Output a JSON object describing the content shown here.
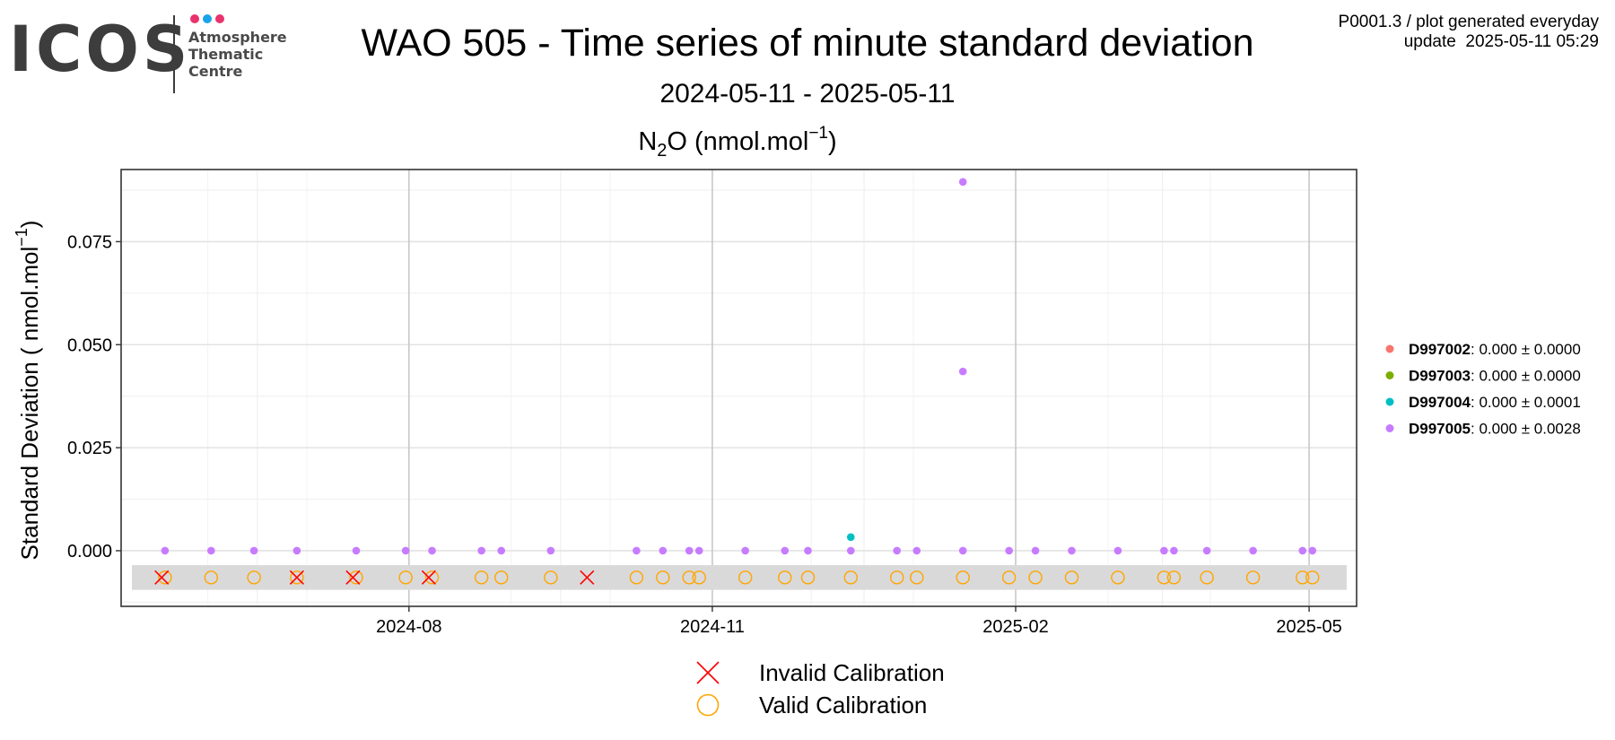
{
  "header": {
    "logo": {
      "wordmark": "ICOS",
      "lines": [
        "Atmosphere",
        "Thematic",
        "Centre"
      ],
      "dot_colors": [
        "#e8336d",
        "#1aa3e8",
        "#e8336d"
      ]
    },
    "title": "WAO 505 - Time series of minute standard deviation",
    "subtitle": "2024-05-11 - 2025-05-11",
    "meta_line1": "P0001.3 / plot generated everyday",
    "meta_line2": "update  2025-05-11 05:29"
  },
  "chart_data": {
    "type": "scatter",
    "title": "N2O (nmol.mol-1)",
    "ylabel": "Standard Deviation ( nmol.mol-1)",
    "x_range": [
      "2024-05-11",
      "2025-05-11"
    ],
    "ylim": [
      -0.0135,
      0.0925
    ],
    "yticks": [
      0.0,
      0.025,
      0.05,
      0.075
    ],
    "ytick_labels": [
      "0.000",
      "0.025",
      "0.050",
      "0.075"
    ],
    "xticks": [
      "2024-08-01",
      "2024-11-01",
      "2025-02-01",
      "2025-05-01"
    ],
    "xtick_labels": [
      "2024-08",
      "2024-11",
      "2025-02",
      "2025-05"
    ],
    "grid": true,
    "legend_position": "right",
    "series": [
      {
        "name": "D997002",
        "label": ": 0.000 ± 0.0000",
        "color": "#f8766d",
        "points": []
      },
      {
        "name": "D997003",
        "label": ": 0.000 ± 0.0000",
        "color": "#7cae00",
        "points": []
      },
      {
        "name": "D997004",
        "label": ": 0.000 ± 0.0001",
        "color": "#00bfc4",
        "points": [
          {
            "x": "2024-12-13",
            "y": 0.0033
          }
        ]
      },
      {
        "name": "D997005",
        "label": ": 0.000 ± 0.0028",
        "color": "#c77cff",
        "points": [
          {
            "x": "2024-05-19",
            "y": 0.0
          },
          {
            "x": "2024-06-02",
            "y": 0.0
          },
          {
            "x": "2024-06-15",
            "y": 0.0
          },
          {
            "x": "2024-06-28",
            "y": 0.0
          },
          {
            "x": "2024-07-16",
            "y": 0.0
          },
          {
            "x": "2024-07-31",
            "y": 0.0
          },
          {
            "x": "2024-08-08",
            "y": 0.0
          },
          {
            "x": "2024-08-23",
            "y": 0.0
          },
          {
            "x": "2024-08-29",
            "y": 0.0
          },
          {
            "x": "2024-09-13",
            "y": 0.0
          },
          {
            "x": "2024-10-09",
            "y": 0.0
          },
          {
            "x": "2024-10-17",
            "y": 0.0
          },
          {
            "x": "2024-10-25",
            "y": 0.0
          },
          {
            "x": "2024-10-28",
            "y": 0.0
          },
          {
            "x": "2024-11-11",
            "y": 0.0
          },
          {
            "x": "2024-11-23",
            "y": 0.0
          },
          {
            "x": "2024-11-30",
            "y": 0.0
          },
          {
            "x": "2024-12-13",
            "y": 0.0
          },
          {
            "x": "2024-12-27",
            "y": 0.0
          },
          {
            "x": "2025-01-02",
            "y": 0.0
          },
          {
            "x": "2025-01-16",
            "y": 0.0
          },
          {
            "x": "2025-01-16",
            "y": 0.0435
          },
          {
            "x": "2025-01-16",
            "y": 0.0895
          },
          {
            "x": "2025-01-30",
            "y": 0.0
          },
          {
            "x": "2025-02-07",
            "y": 0.0
          },
          {
            "x": "2025-02-18",
            "y": 0.0
          },
          {
            "x": "2025-03-04",
            "y": 0.0
          },
          {
            "x": "2025-03-18",
            "y": 0.0
          },
          {
            "x": "2025-03-21",
            "y": 0.0
          },
          {
            "x": "2025-03-31",
            "y": 0.0
          },
          {
            "x": "2025-04-14",
            "y": 0.0
          },
          {
            "x": "2025-04-29",
            "y": 0.0
          },
          {
            "x": "2025-05-02",
            "y": 0.0
          }
        ]
      }
    ],
    "calibrations": {
      "y": -0.0065,
      "valid": [
        "2024-05-19",
        "2024-06-02",
        "2024-06-15",
        "2024-06-28",
        "2024-07-16",
        "2024-07-31",
        "2024-08-08",
        "2024-08-23",
        "2024-08-29",
        "2024-09-13",
        "2024-10-09",
        "2024-10-17",
        "2024-10-25",
        "2024-10-28",
        "2024-11-11",
        "2024-11-23",
        "2024-11-30",
        "2024-12-13",
        "2024-12-27",
        "2025-01-02",
        "2025-01-16",
        "2025-01-30",
        "2025-02-07",
        "2025-02-18",
        "2025-03-04",
        "2025-03-18",
        "2025-03-21",
        "2025-03-31",
        "2025-04-14",
        "2025-04-29",
        "2025-05-02"
      ],
      "invalid": [
        "2024-05-18",
        "2024-06-28",
        "2024-07-15",
        "2024-08-07",
        "2024-09-24"
      ]
    },
    "bottom_legend": {
      "invalid_label": "Invalid Calibration",
      "valid_label": "Valid Calibration",
      "invalid_color": "#ff0000",
      "valid_color": "#ffa500"
    }
  }
}
